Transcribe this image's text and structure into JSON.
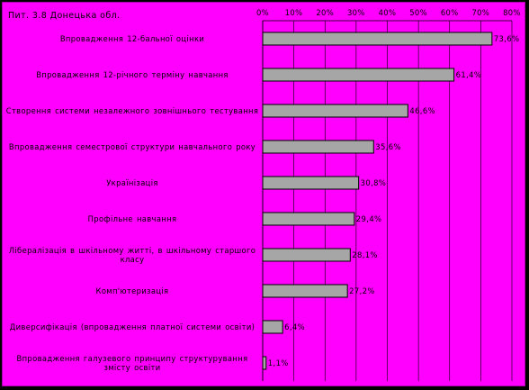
{
  "chart_data": {
    "type": "bar",
    "orientation": "horizontal",
    "title": "Пит. 3.8 Донецька обл.",
    "categories": [
      "Впровадження 12-бальної оцінки",
      "Впровадження 12-річного терміну навчання",
      "Створення системи незалежного зовнішнього тестування",
      "Впровадження семестрової структури навчального року",
      "Українізація",
      "Профільне навчання",
      "Лібералізація в шкільному житті, в шкільному старшого класу",
      "Комп'ютеризація",
      "Диверсифікація (впровадження платної системи освіти)",
      "Впровадження галузевого принципу структурування змісту освіти"
    ],
    "values": [
      73.6,
      61.4,
      46.6,
      35.6,
      30.8,
      29.4,
      28.1,
      27.2,
      6.4,
      1.1
    ],
    "value_labels": [
      "73,6%",
      "61,4%",
      "46,6%",
      "35,6%",
      "30,8%",
      "29,4%",
      "28,1%",
      "27,2%",
      "6,4%",
      "1,1%"
    ],
    "x_ticks": [
      0,
      10,
      20,
      30,
      40,
      50,
      60,
      70,
      80
    ],
    "x_tick_labels": [
      "0%",
      "10%",
      "20%",
      "30%",
      "40%",
      "50%",
      "60%",
      "70%",
      "80%"
    ],
    "xlim": [
      0,
      80
    ],
    "x_axis_position": "top",
    "grid": true,
    "legend": "none",
    "colors": {
      "background": "#ff00ff",
      "outer": "#000000",
      "bar_fill": "#a6a6a6",
      "bar_stroke": "#000000",
      "grid": "#000000",
      "text": "#000000"
    }
  }
}
